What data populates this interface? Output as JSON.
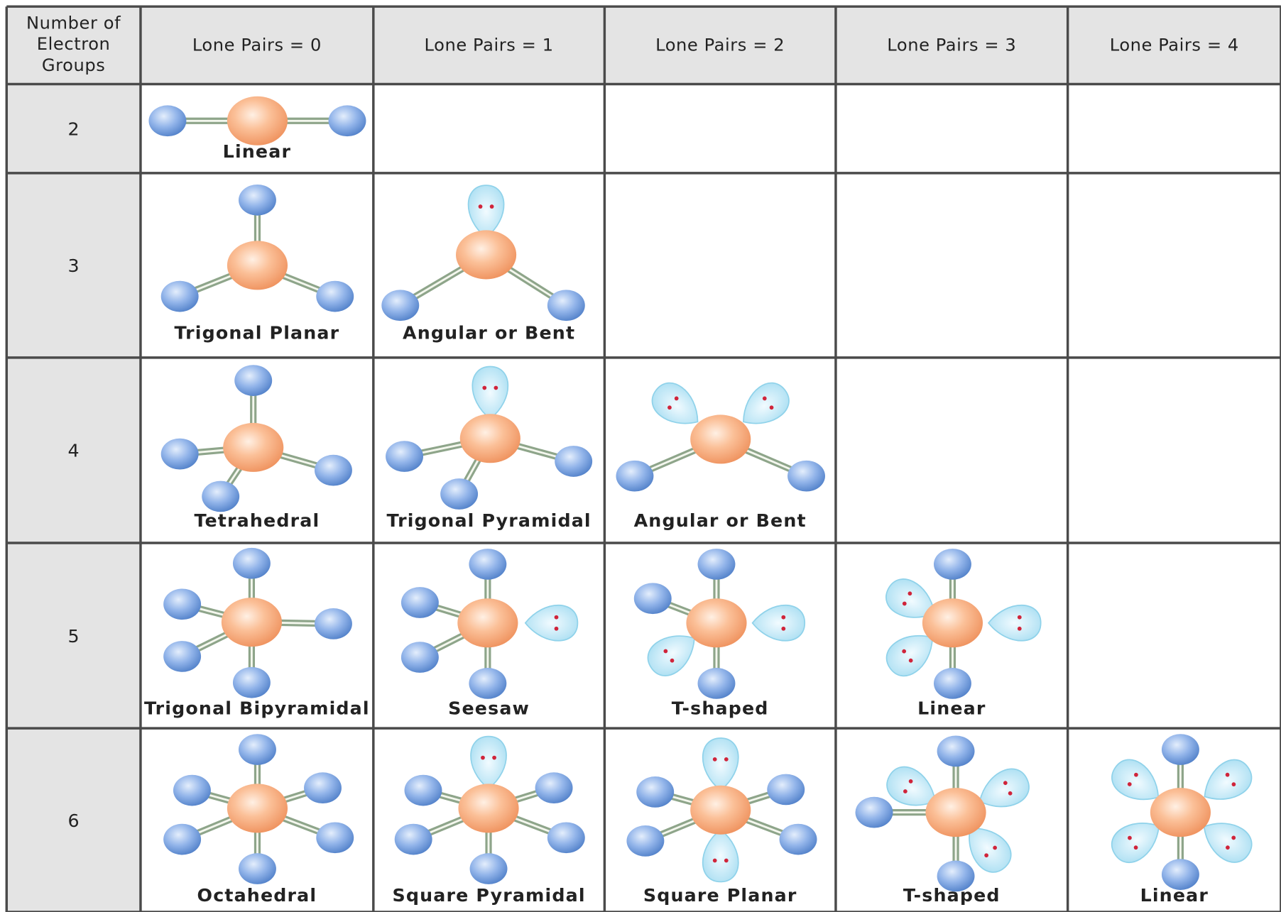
{
  "header": {
    "corner": [
      "Number of",
      "Electron",
      "Groups"
    ],
    "columns": [
      "Lone Pairs = 0",
      "Lone Pairs = 1",
      "Lone Pairs = 2",
      "Lone Pairs = 3",
      "Lone Pairs = 4"
    ]
  },
  "rows": [
    {
      "groups": "2",
      "shapes": [
        "Linear"
      ]
    },
    {
      "groups": "3",
      "shapes": [
        "Trigonal Planar",
        "Angular or Bent"
      ]
    },
    {
      "groups": "4",
      "shapes": [
        "Tetrahedral",
        "Trigonal Pyramidal",
        "Angular or Bent"
      ]
    },
    {
      "groups": "5",
      "shapes": [
        "Trigonal Bipyramidal",
        "Seesaw",
        "T-shaped",
        "Linear"
      ]
    },
    {
      "groups": "6",
      "shapes": [
        "Octahedral",
        "Square Pyramidal",
        "Square Planar",
        "T-shaped",
        "Linear"
      ]
    }
  ]
}
